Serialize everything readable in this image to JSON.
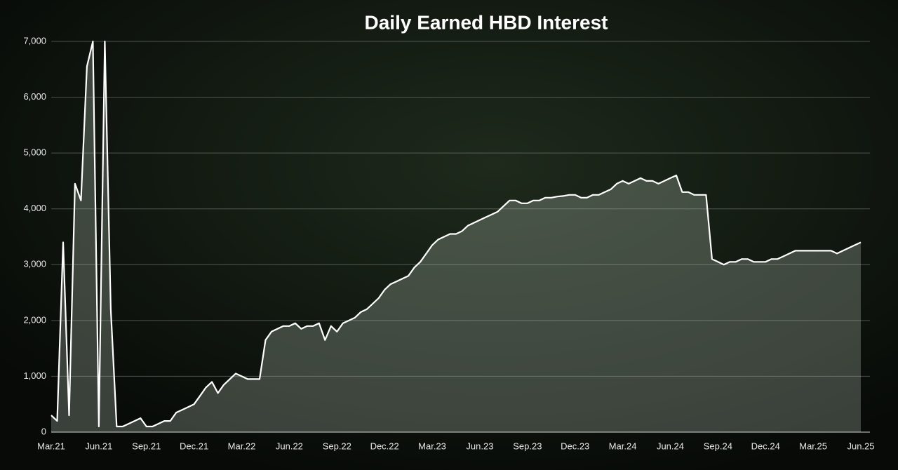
{
  "chart_data": {
    "type": "area",
    "title": "Daily Earned HBD Interest",
    "categories": [
      "Mar.21",
      null,
      null,
      null,
      null,
      null,
      null,
      null,
      "Jun.21",
      null,
      null,
      null,
      null,
      null,
      null,
      null,
      "Sep.21",
      null,
      null,
      null,
      null,
      null,
      null,
      null,
      "Dec.21",
      null,
      null,
      null,
      null,
      null,
      null,
      null,
      "Mar.22",
      null,
      null,
      null,
      null,
      null,
      null,
      null,
      "Jun.22",
      null,
      null,
      null,
      null,
      null,
      null,
      null,
      "Sep.22",
      null,
      null,
      null,
      null,
      null,
      null,
      null,
      "Dec.22",
      null,
      null,
      null,
      null,
      null,
      null,
      null,
      "Mar.23",
      null,
      null,
      null,
      null,
      null,
      null,
      null,
      "Jun.23",
      null,
      null,
      null,
      null,
      null,
      null,
      null,
      "Sep.23",
      null,
      null,
      null,
      null,
      null,
      null,
      null,
      "Dec.23",
      null,
      null,
      null,
      null,
      null,
      null,
      null,
      "Mar.24",
      null,
      null,
      null,
      null,
      null,
      null,
      null,
      "Jun.24",
      null,
      null,
      null,
      null,
      null,
      null,
      null,
      "Sep.24",
      null,
      null,
      null,
      null,
      null,
      null,
      null,
      "Dec.24",
      null,
      null,
      null,
      null,
      null,
      null,
      null,
      "Mar.25",
      null,
      null,
      null,
      null,
      null,
      null,
      null,
      "Jun.25"
    ],
    "values": [
      300,
      200,
      3400,
      300,
      4450,
      4150,
      6550,
      7000,
      100,
      7000,
      2200,
      100,
      100,
      150,
      200,
      250,
      100,
      100,
      150,
      200,
      200,
      350,
      400,
      450,
      500,
      650,
      800,
      900,
      700,
      850,
      950,
      1050,
      1000,
      950,
      950,
      950,
      1650,
      1800,
      1850,
      1900,
      1900,
      1950,
      1850,
      1900,
      1900,
      1950,
      1650,
      1900,
      1800,
      1950,
      2000,
      2050,
      2150,
      2200,
      2300,
      2400,
      2550,
      2650,
      2700,
      2750,
      2800,
      2950,
      3050,
      3200,
      3350,
      3450,
      3500,
      3550,
      3550,
      3600,
      3700,
      3750,
      3800,
      3850,
      3900,
      3950,
      4050,
      4150,
      4150,
      4100,
      4100,
      4150,
      4150,
      4200,
      4200,
      4220,
      4230,
      4250,
      4250,
      4200,
      4200,
      4250,
      4250,
      4300,
      4350,
      4450,
      4500,
      4450,
      4500,
      4550,
      4500,
      4500,
      4450,
      4500,
      4550,
      4600,
      4300,
      4300,
      4250,
      4250,
      4250,
      3100,
      3050,
      3000,
      3050,
      3050,
      3100,
      3100,
      3050,
      3050,
      3050,
      3100,
      3100,
      3150,
      3200,
      3250,
      3250,
      3250,
      3250,
      3250,
      3250,
      3250,
      3200,
      3250,
      3300,
      3350,
      3400
    ],
    "color": "#ffffff",
    "fill": "rgba(190,205,190,0.28)",
    "ylim": [
      0,
      7000
    ],
    "yticks": [
      0,
      {
        "value": 1000,
        "label": "1,000"
      },
      {
        "value": 2000,
        "label": "2,000"
      },
      {
        "value": 3000,
        "label": "3,000"
      },
      {
        "value": 4000,
        "label": "4,000"
      },
      {
        "value": 5000,
        "label": "5,000"
      },
      {
        "value": 6000,
        "label": "6,000"
      },
      {
        "value": 7000,
        "label": "7,000"
      }
    ],
    "grid": true
  }
}
